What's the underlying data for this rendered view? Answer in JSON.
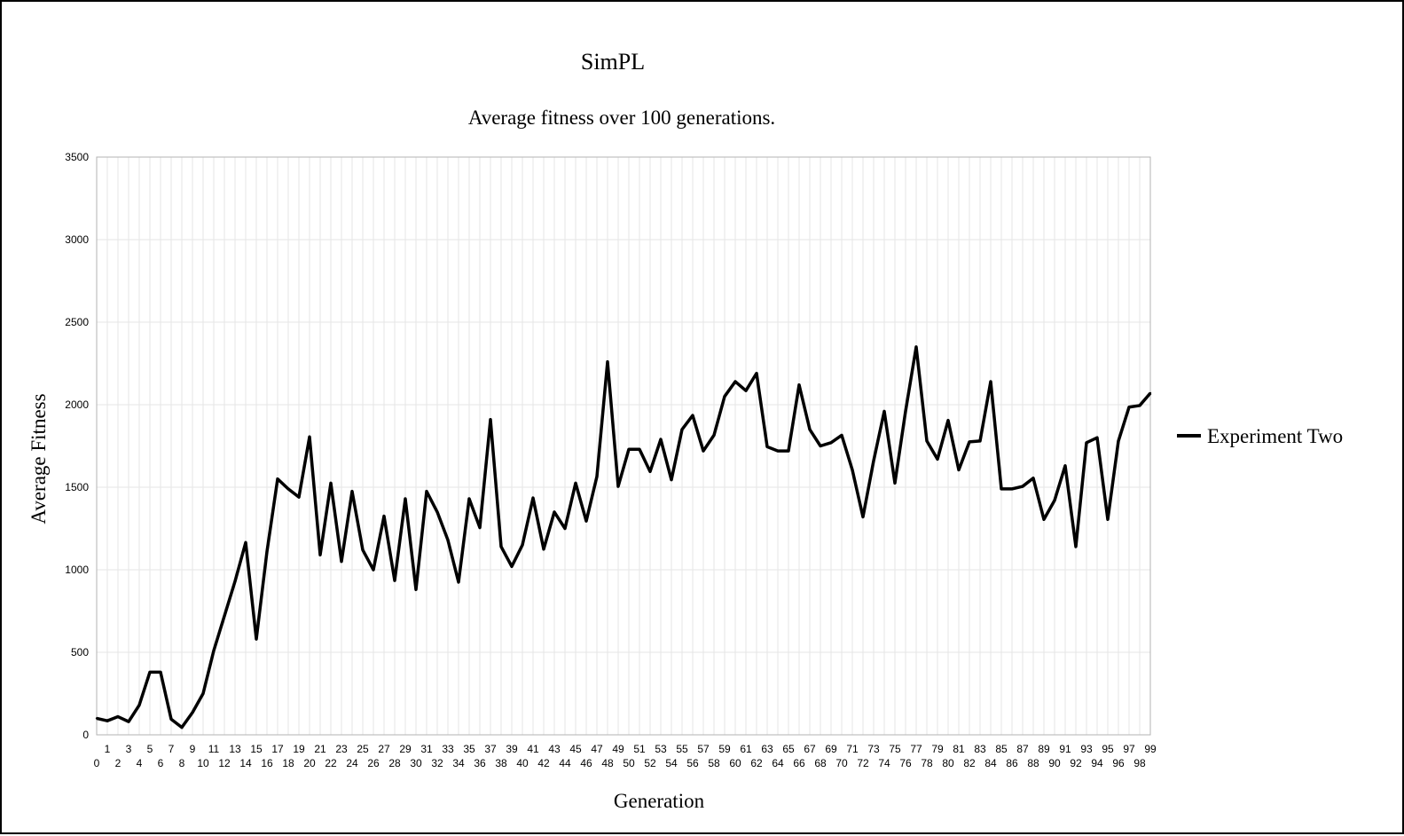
{
  "chart_data": {
    "type": "line",
    "title": "SimPL",
    "subtitle": "Average fitness over 100 generations.",
    "xlabel": "Generation",
    "ylabel": "Average Fitness",
    "ylim": [
      0,
      3500
    ],
    "yticks": [
      0,
      500,
      1000,
      1500,
      2000,
      2500,
      3000,
      3500
    ],
    "grid": true,
    "legend_position": "right",
    "colors": {
      "line": "#000000",
      "grid": "#e6e6e6",
      "axis": "#b3b3b3"
    },
    "x": [
      0,
      1,
      2,
      3,
      4,
      5,
      6,
      7,
      8,
      9,
      10,
      11,
      12,
      13,
      14,
      15,
      16,
      17,
      18,
      19,
      20,
      21,
      22,
      23,
      24,
      25,
      26,
      27,
      28,
      29,
      30,
      31,
      32,
      33,
      34,
      35,
      36,
      37,
      38,
      39,
      40,
      41,
      42,
      43,
      44,
      45,
      46,
      47,
      48,
      49,
      50,
      51,
      52,
      53,
      54,
      55,
      56,
      57,
      58,
      59,
      60,
      61,
      62,
      63,
      64,
      65,
      66,
      67,
      68,
      69,
      70,
      71,
      72,
      73,
      74,
      75,
      76,
      77,
      78,
      79,
      80,
      81,
      82,
      83,
      84,
      85,
      86,
      87,
      88,
      89,
      90,
      91,
      92,
      93,
      94,
      95,
      96,
      97,
      98,
      99
    ],
    "series": [
      {
        "name": "Experiment Two",
        "values": [
          100,
          85,
          110,
          80,
          180,
          380,
          380,
          95,
          45,
          135,
          250,
          510,
          720,
          930,
          1165,
          580,
          1110,
          1550,
          1490,
          1440,
          1805,
          1090,
          1525,
          1050,
          1475,
          1120,
          1000,
          1325,
          935,
          1430,
          880,
          1475,
          1350,
          1180,
          925,
          1430,
          1255,
          1910,
          1140,
          1020,
          1150,
          1435,
          1125,
          1350,
          1250,
          1525,
          1295,
          1565,
          2260,
          1505,
          1730,
          1730,
          1595,
          1790,
          1545,
          1850,
          1935,
          1720,
          1815,
          2050,
          2140,
          2085,
          2190,
          1745,
          1720,
          1720,
          2120,
          1850,
          1750,
          1770,
          1815,
          1605,
          1320,
          1660,
          1960,
          1525,
          1960,
          2350,
          1780,
          1670,
          1905,
          1605,
          1775,
          1780,
          2140,
          1490,
          1490,
          1505,
          1555,
          1305,
          1420,
          1630,
          1140,
          1770,
          1800,
          1305,
          1780,
          1985,
          1995,
          2070
        ]
      }
    ]
  }
}
